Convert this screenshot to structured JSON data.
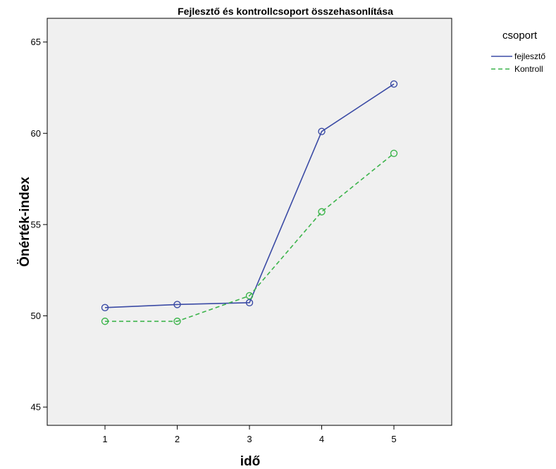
{
  "chart_data": {
    "type": "line",
    "title": "Fejlesztő és kontrollcsoport összehasonlítása",
    "xlabel": "idő",
    "ylabel": "Önérték-index",
    "x": [
      1,
      2,
      3,
      4,
      5
    ],
    "x_tick_labels": [
      "1",
      "2",
      "3",
      "4",
      "5"
    ],
    "xlim": [
      0.2,
      5.8
    ],
    "ylim": [
      44.0,
      66.3
    ],
    "y_ticks": [
      45,
      50,
      55,
      60,
      65
    ],
    "y_tick_labels": [
      "45",
      "50",
      "55",
      "60",
      "65"
    ],
    "grid": false,
    "legend": {
      "title": "csoport",
      "placement": "top-right outside plot"
    },
    "series": [
      {
        "name": "fejlesztő",
        "values": [
          50.45,
          50.62,
          50.72,
          60.1,
          62.7
        ],
        "color": "#3b4ba5",
        "dash": "solid",
        "marker": "open-circle"
      },
      {
        "name": "Kontroll",
        "values": [
          49.7,
          49.7,
          51.1,
          55.7,
          58.9
        ],
        "color": "#3cb44b",
        "dash": "dashed",
        "marker": "open-circle"
      }
    ],
    "colors": {
      "plot_background": "#f0f0f0",
      "axis": "#000000"
    }
  }
}
